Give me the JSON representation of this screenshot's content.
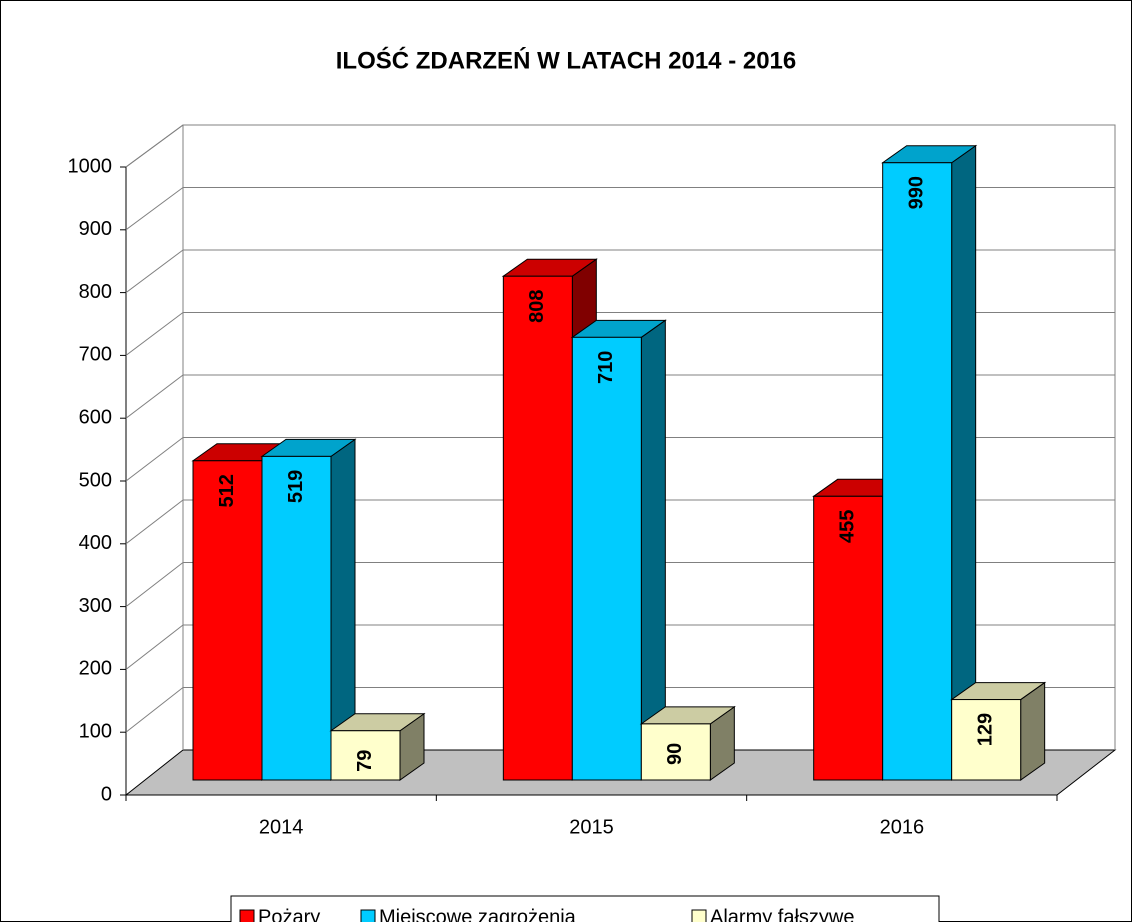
{
  "chart_data": {
    "type": "bar3d",
    "title": "ILOŚĆ ZDARZEŃ W LATACH 2014 - 2016",
    "categories": [
      "2014",
      "2015",
      "2016"
    ],
    "series": [
      {
        "name": "Pożary",
        "color": "#ff0000",
        "values": [
          512,
          808,
          455
        ]
      },
      {
        "name": "Miejscowe zagrożenia",
        "color": "#00ccff",
        "values": [
          519,
          710,
          990
        ]
      },
      {
        "name": "Alarmy fałszywe",
        "color": "#ffffcc",
        "values": [
          79,
          90,
          129
        ]
      }
    ],
    "ylim": [
      0,
      1000
    ],
    "yticks": [
      0,
      100,
      200,
      300,
      400,
      500,
      600,
      700,
      800,
      900,
      1000
    ],
    "grid": true,
    "legend": "bottom"
  }
}
